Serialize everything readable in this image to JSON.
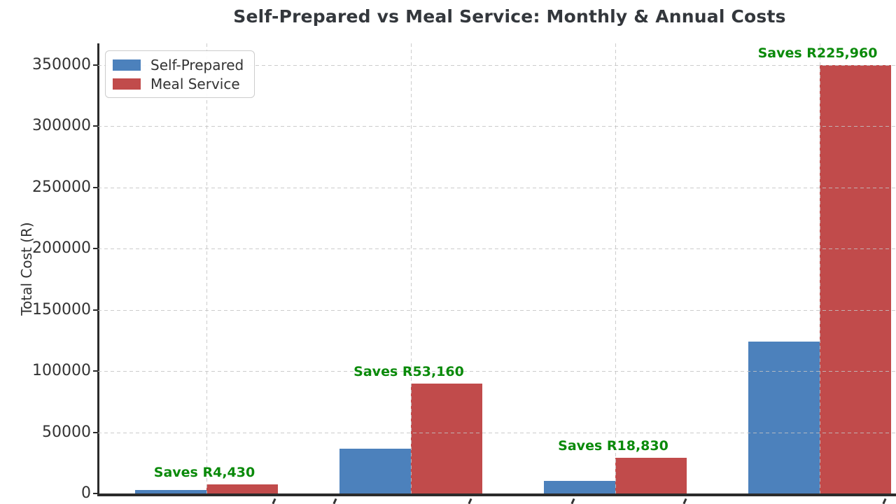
{
  "title": "Self-Prepared vs Meal Service: Monthly & Annual Costs",
  "ylabel": "Total Cost (R)",
  "legend": {
    "items": [
      {
        "label": "Self-Prepared",
        "color": "#4c81bc"
      },
      {
        "label": "Meal Service",
        "color": "#c14b4b"
      }
    ]
  },
  "chart_data": {
    "type": "bar",
    "title": "Self-Prepared vs Meal Service: Monthly & Annual Costs",
    "xlabel": "",
    "ylabel": "Total Cost (R)",
    "categories": [
      "",
      "",
      "",
      ""
    ],
    "series": [
      {
        "name": "Self-Prepared",
        "color": "#4c81bc",
        "values": [
          3070,
          36840,
          10330,
          123960
        ]
      },
      {
        "name": "Meal Service",
        "color": "#c14b4b",
        "values": [
          7500,
          90000,
          29160,
          349920
        ]
      }
    ],
    "annotations": [
      {
        "text": "Saves R4,430"
      },
      {
        "text": "Saves R53,160"
      },
      {
        "text": "Saves R18,830"
      },
      {
        "text": "Saves R225,960"
      }
    ],
    "annotation_color": "#0a8a0a",
    "yticks": [
      0,
      50000,
      100000,
      150000,
      200000,
      250000,
      300000,
      350000
    ],
    "ylim": [
      0,
      367400
    ],
    "grid": true,
    "grid_style": "dashed",
    "legend_position": "upper left"
  }
}
